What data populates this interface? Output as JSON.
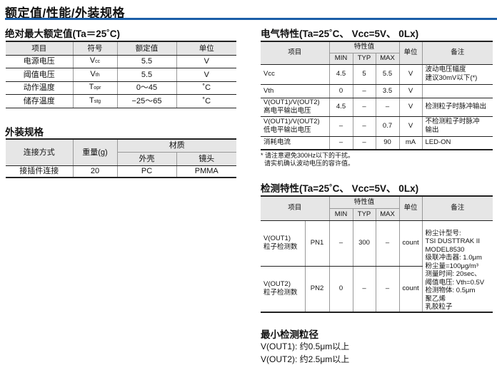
{
  "title": "额定值/性能/外装规格",
  "colors": {
    "accent": "#1a5ea8",
    "header_bg": "#e6e6e6"
  },
  "abs_max": {
    "heading": "绝对最大额定值(Ta＝25˚C)",
    "headers": [
      "项目",
      "符号",
      "额定值",
      "单位"
    ],
    "rows": [
      {
        "item": "电源电压",
        "sym": "V",
        "sub": "cc",
        "val": "5.5",
        "unit": "V"
      },
      {
        "item": "阈值电压",
        "sym": "V",
        "sub": "th",
        "val": "5.5",
        "unit": "V"
      },
      {
        "item": "动作温度",
        "sym": "T",
        "sub": "opr",
        "val": "0～45",
        "unit": "˚C"
      },
      {
        "item": "储存温度",
        "sym": "T",
        "sub": "stg",
        "val": "−25～65",
        "unit": "˚C"
      }
    ]
  },
  "package": {
    "heading": "外装规格",
    "headers": {
      "connect": "连接方式",
      "weight": "重量(g)",
      "material": "材质",
      "shell": "外壳",
      "lens": "镜头"
    },
    "row": {
      "connect": "接插件连接",
      "weight": "20",
      "shell": "PC",
      "lens": "PMMA"
    }
  },
  "electrical": {
    "heading": "电气特性(Ta=25˚C、 Vcc=5V、 0Lx)",
    "headers": {
      "item": "项目",
      "char": "特性值",
      "min": "MIN",
      "typ": "TYP",
      "max": "MAX",
      "unit": "单位",
      "note": "备注"
    },
    "rows": [
      {
        "item": "Vcc",
        "min": "4.5",
        "typ": "5",
        "max": "5.5",
        "unit": "V",
        "note": "波动电压幅度\n建议30mV以下(*)"
      },
      {
        "item": "Vth",
        "min": "0",
        "typ": "–",
        "max": "3.5",
        "unit": "V",
        "note": ""
      },
      {
        "item": "V(OUT1)/V(OUT2)\n高电平输出电压",
        "min": "4.5",
        "typ": "–",
        "max": "–",
        "unit": "V",
        "note": "检测粒子时脉冲输出"
      },
      {
        "item": "V(OUT1)/V(OUT2)\n低电平输出电压",
        "min": "–",
        "typ": "–",
        "max": "0.7",
        "unit": "V",
        "note": "不检测粒子时脉冲\n输出"
      },
      {
        "item": "消耗电流",
        "min": "–",
        "typ": "–",
        "max": "90",
        "unit": "mA",
        "note": "LED-ON"
      }
    ],
    "footnote": "* 请注意避免300Hz以下的干扰。\n  请实机确认波动电压的容许值。"
  },
  "detection": {
    "heading": "检测特性(Ta=25˚C、 Vcc=5V、 0Lx)",
    "headers": {
      "item": "项目",
      "char": "特性值",
      "min": "MIN",
      "typ": "TYP",
      "max": "MAX",
      "unit": "单位",
      "note": "备注"
    },
    "rows": [
      {
        "item": "V(OUT1)\n粒子检测数",
        "pn": "PN1",
        "min": "–",
        "typ": "300",
        "max": "–",
        "unit": "count"
      },
      {
        "item": "V(OUT2)\n粒子检测数",
        "pn": "PN2",
        "min": "0",
        "typ": "–",
        "max": "–",
        "unit": "count"
      }
    ],
    "note": "粉尘计型号:\nTSI DUSTTRAK II\nMODEL8530\n级联冲击器: 1.0μm\n粉尘量=100μg/m³\n测量时间: 20sec、\n阈值电压: Vth=0.5V\n检测物体: 0.5μm\n聚乙烯\n乳胶粒子"
  },
  "min_particle": {
    "heading": "最小检测粒径",
    "lines": [
      "V(OUT1): 约0.5μm以上",
      "V(OUT2): 约2.5μm以上"
    ]
  }
}
